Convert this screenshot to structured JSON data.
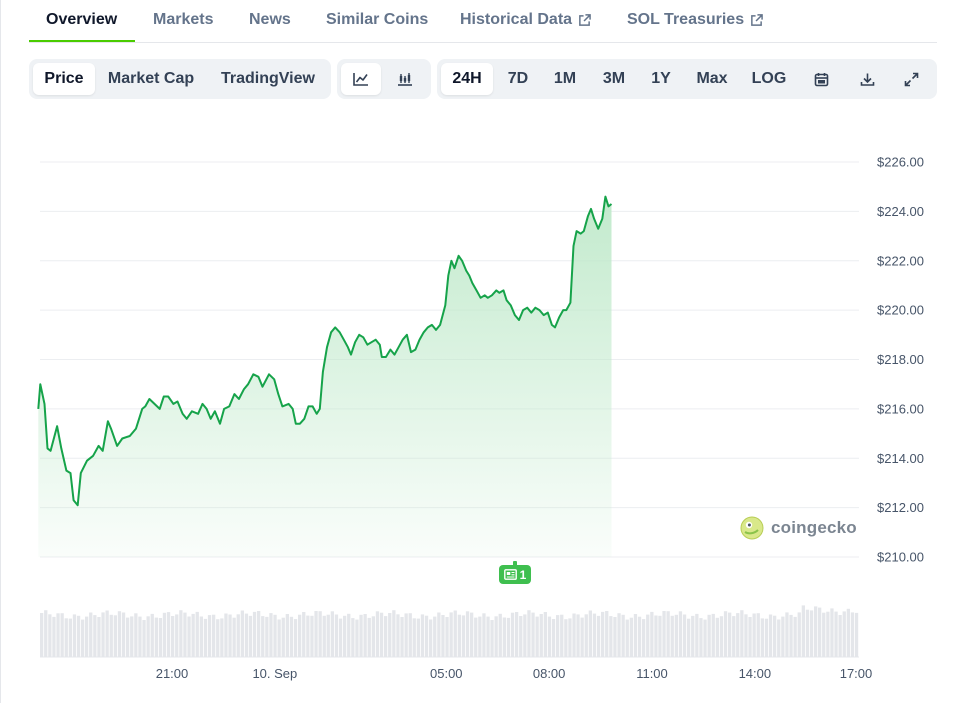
{
  "tabs": [
    {
      "label": "Overview",
      "active": true
    },
    {
      "label": "Markets"
    },
    {
      "label": "News"
    },
    {
      "label": "Similar Coins"
    },
    {
      "label": "Historical Data",
      "external": true
    },
    {
      "label": "SOL Treasuries",
      "external": true
    }
  ],
  "toolbar": {
    "chart_kind": [
      "Price",
      "Market Cap",
      "TradingView"
    ],
    "chart_kind_active": "Price",
    "chart_style_icons": [
      "line-chart-icon",
      "candlestick-icon"
    ],
    "chart_style_active": "line-chart-icon",
    "ranges": [
      "24H",
      "7D",
      "1M",
      "3M",
      "1Y",
      "Max",
      "LOG"
    ],
    "range_active": "24H",
    "tool_icons": [
      "calendar-icon",
      "download-icon",
      "expand-icon"
    ]
  },
  "watermark": "coingecko",
  "news_badge": {
    "count": "1"
  },
  "colors": {
    "line": "#16a34a",
    "area_top": "#c7ecd0",
    "accent": "#4bcc00",
    "volume": "#e4e6ea"
  },
  "chart_data": {
    "type": "area",
    "ylim": [
      210,
      226
    ],
    "y_ticks": [
      "$226.00",
      "$224.00",
      "$222.00",
      "$220.00",
      "$218.00",
      "$216.00",
      "$214.00",
      "$212.00",
      "$210.00"
    ],
    "y_tick_values": [
      226,
      224,
      222,
      220,
      218,
      216,
      214,
      212,
      210
    ],
    "x_ticks": [
      {
        "label": "21:00",
        "h": 3.9
      },
      {
        "label": "10. Sep",
        "h": 6.9
      },
      {
        "label": "05:00",
        "h": 11.9
      },
      {
        "label": "08:00",
        "h": 14.9
      },
      {
        "label": "11:00",
        "h": 17.9
      },
      {
        "label": "14:00",
        "h": 20.9
      },
      {
        "label": "17:00",
        "h": 23.85
      }
    ],
    "series": [
      {
        "values": [
          [
            0.0,
            216.0
          ],
          [
            0.06,
            217.0
          ],
          [
            0.18,
            216.2
          ],
          [
            0.27,
            214.4
          ],
          [
            0.36,
            214.3
          ],
          [
            0.55,
            215.3
          ],
          [
            0.67,
            214.4
          ],
          [
            0.82,
            213.5
          ],
          [
            0.94,
            213.4
          ],
          [
            1.03,
            212.3
          ],
          [
            1.15,
            212.1
          ],
          [
            1.24,
            213.4
          ],
          [
            1.42,
            213.9
          ],
          [
            1.6,
            214.1
          ],
          [
            1.76,
            214.5
          ],
          [
            1.88,
            214.3
          ],
          [
            2.03,
            215.5
          ],
          [
            2.12,
            215.2
          ],
          [
            2.3,
            214.5
          ],
          [
            2.45,
            214.8
          ],
          [
            2.67,
            214.9
          ],
          [
            2.85,
            215.2
          ],
          [
            3.03,
            216.0
          ],
          [
            3.12,
            216.1
          ],
          [
            3.24,
            216.4
          ],
          [
            3.39,
            216.2
          ],
          [
            3.54,
            216.0
          ],
          [
            3.66,
            216.5
          ],
          [
            3.79,
            216.5
          ],
          [
            3.94,
            216.2
          ],
          [
            4.06,
            216.3
          ],
          [
            4.21,
            215.8
          ],
          [
            4.33,
            215.6
          ],
          [
            4.48,
            215.9
          ],
          [
            4.66,
            215.8
          ],
          [
            4.79,
            216.2
          ],
          [
            4.91,
            216.0
          ],
          [
            5.03,
            215.6
          ],
          [
            5.15,
            215.9
          ],
          [
            5.3,
            215.4
          ],
          [
            5.42,
            216.0
          ],
          [
            5.57,
            216.1
          ],
          [
            5.72,
            216.6
          ],
          [
            5.85,
            216.4
          ],
          [
            6.0,
            216.8
          ],
          [
            6.12,
            217.0
          ],
          [
            6.27,
            217.4
          ],
          [
            6.42,
            217.3
          ],
          [
            6.54,
            216.9
          ],
          [
            6.73,
            217.4
          ],
          [
            6.88,
            217.2
          ],
          [
            7.0,
            216.6
          ],
          [
            7.12,
            216.1
          ],
          [
            7.3,
            216.2
          ],
          [
            7.42,
            216.0
          ],
          [
            7.51,
            215.4
          ],
          [
            7.63,
            215.4
          ],
          [
            7.76,
            215.6
          ],
          [
            7.88,
            216.1
          ],
          [
            8.0,
            216.1
          ],
          [
            8.12,
            215.8
          ],
          [
            8.21,
            216.0
          ],
          [
            8.3,
            217.5
          ],
          [
            8.42,
            218.5
          ],
          [
            8.54,
            219.1
          ],
          [
            8.66,
            219.3
          ],
          [
            8.79,
            219.1
          ],
          [
            8.91,
            218.8
          ],
          [
            9.03,
            218.5
          ],
          [
            9.12,
            218.2
          ],
          [
            9.24,
            218.7
          ],
          [
            9.36,
            219.0
          ],
          [
            9.48,
            218.9
          ],
          [
            9.6,
            218.6
          ],
          [
            9.72,
            218.7
          ],
          [
            9.84,
            218.8
          ],
          [
            9.96,
            218.6
          ],
          [
            10.02,
            218.1
          ],
          [
            10.14,
            218.1
          ],
          [
            10.27,
            218.4
          ],
          [
            10.39,
            218.2
          ],
          [
            10.51,
            218.5
          ],
          [
            10.63,
            218.8
          ],
          [
            10.75,
            219.0
          ],
          [
            10.87,
            218.3
          ],
          [
            11.0,
            218.4
          ],
          [
            11.12,
            218.8
          ],
          [
            11.24,
            219.1
          ],
          [
            11.36,
            219.3
          ],
          [
            11.48,
            219.4
          ],
          [
            11.6,
            219.2
          ],
          [
            11.72,
            219.4
          ],
          [
            11.87,
            220.2
          ],
          [
            11.96,
            221.4
          ],
          [
            12.05,
            222.0
          ],
          [
            12.14,
            221.7
          ],
          [
            12.26,
            222.2
          ],
          [
            12.36,
            222.0
          ],
          [
            12.48,
            221.6
          ],
          [
            12.57,
            221.4
          ],
          [
            12.66,
            221.1
          ],
          [
            12.78,
            220.8
          ],
          [
            12.9,
            220.5
          ],
          [
            13.02,
            220.6
          ],
          [
            13.11,
            220.5
          ],
          [
            13.23,
            220.6
          ],
          [
            13.36,
            220.8
          ],
          [
            13.45,
            220.7
          ],
          [
            13.57,
            220.8
          ],
          [
            13.66,
            220.4
          ],
          [
            13.78,
            220.2
          ],
          [
            13.9,
            219.8
          ],
          [
            14.02,
            219.6
          ],
          [
            14.14,
            220.0
          ],
          [
            14.26,
            220.1
          ],
          [
            14.38,
            219.9
          ],
          [
            14.5,
            220.1
          ],
          [
            14.62,
            220.0
          ],
          [
            14.74,
            219.8
          ],
          [
            14.86,
            219.9
          ],
          [
            14.98,
            219.4
          ],
          [
            15.07,
            219.3
          ],
          [
            15.19,
            219.7
          ],
          [
            15.31,
            220.0
          ],
          [
            15.4,
            220.0
          ],
          [
            15.52,
            220.3
          ],
          [
            15.61,
            222.6
          ],
          [
            15.7,
            223.2
          ],
          [
            15.82,
            223.1
          ],
          [
            15.91,
            223.2
          ],
          [
            16.03,
            223.8
          ],
          [
            16.12,
            224.1
          ],
          [
            16.21,
            223.7
          ],
          [
            16.33,
            223.3
          ],
          [
            16.45,
            223.7
          ],
          [
            16.54,
            224.6
          ],
          [
            16.63,
            224.2
          ],
          [
            16.72,
            224.3
          ]
        ]
      }
    ]
  }
}
